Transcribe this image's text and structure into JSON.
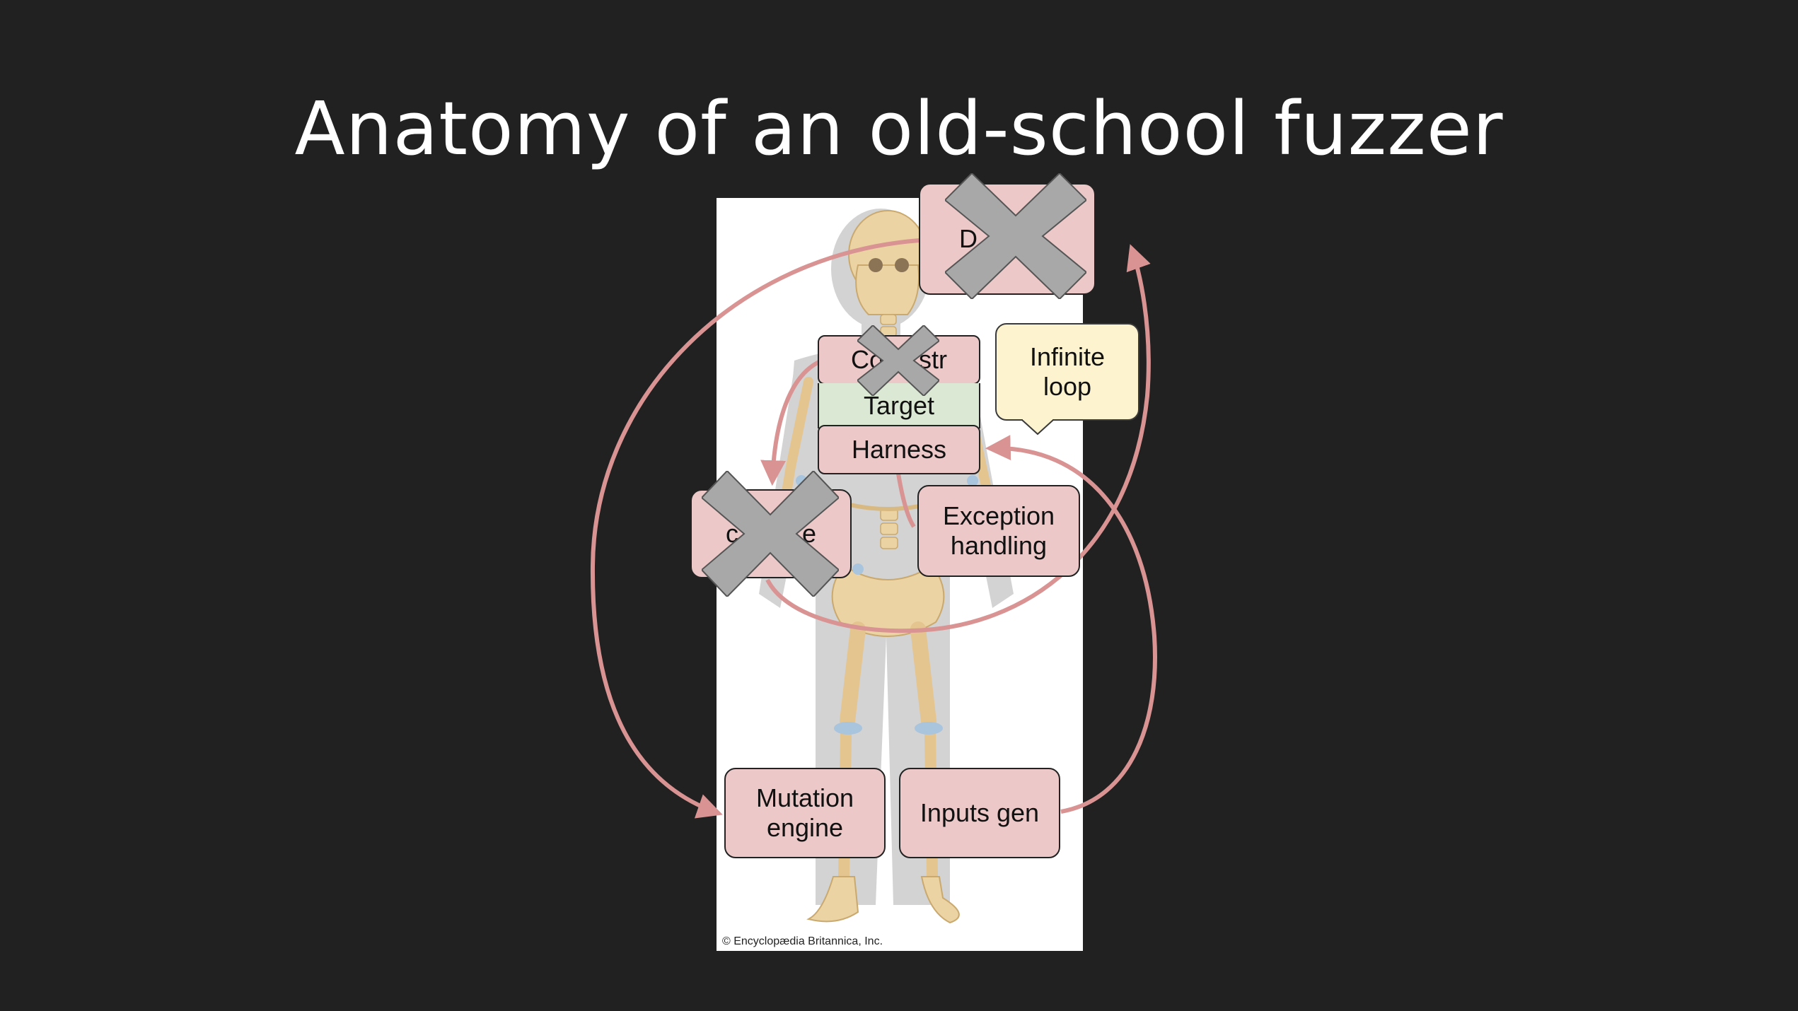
{
  "slide": {
    "title": "Anatomy of an old-school fuzzer",
    "image_credit": "© Encyclopædia Britannica, Inc.",
    "colors": {
      "background": "#212121",
      "box_pink": "#ecc8c8",
      "box_green": "#dbe9d4",
      "box_yellow": "#fdf3cf",
      "arrow": "#d99393",
      "cross": "#a8a8a8"
    }
  },
  "diagram": {
    "boxes": {
      "top_crossed": "D",
      "constructor": "Co     str",
      "target": "Target",
      "harness": "Harness",
      "left_crossed": "c         e",
      "exception": "Exception\nhandling",
      "mutation": "Mutation\nengine",
      "inputs": "Inputs gen",
      "infinite_loop": "Infinite\nloop"
    }
  }
}
